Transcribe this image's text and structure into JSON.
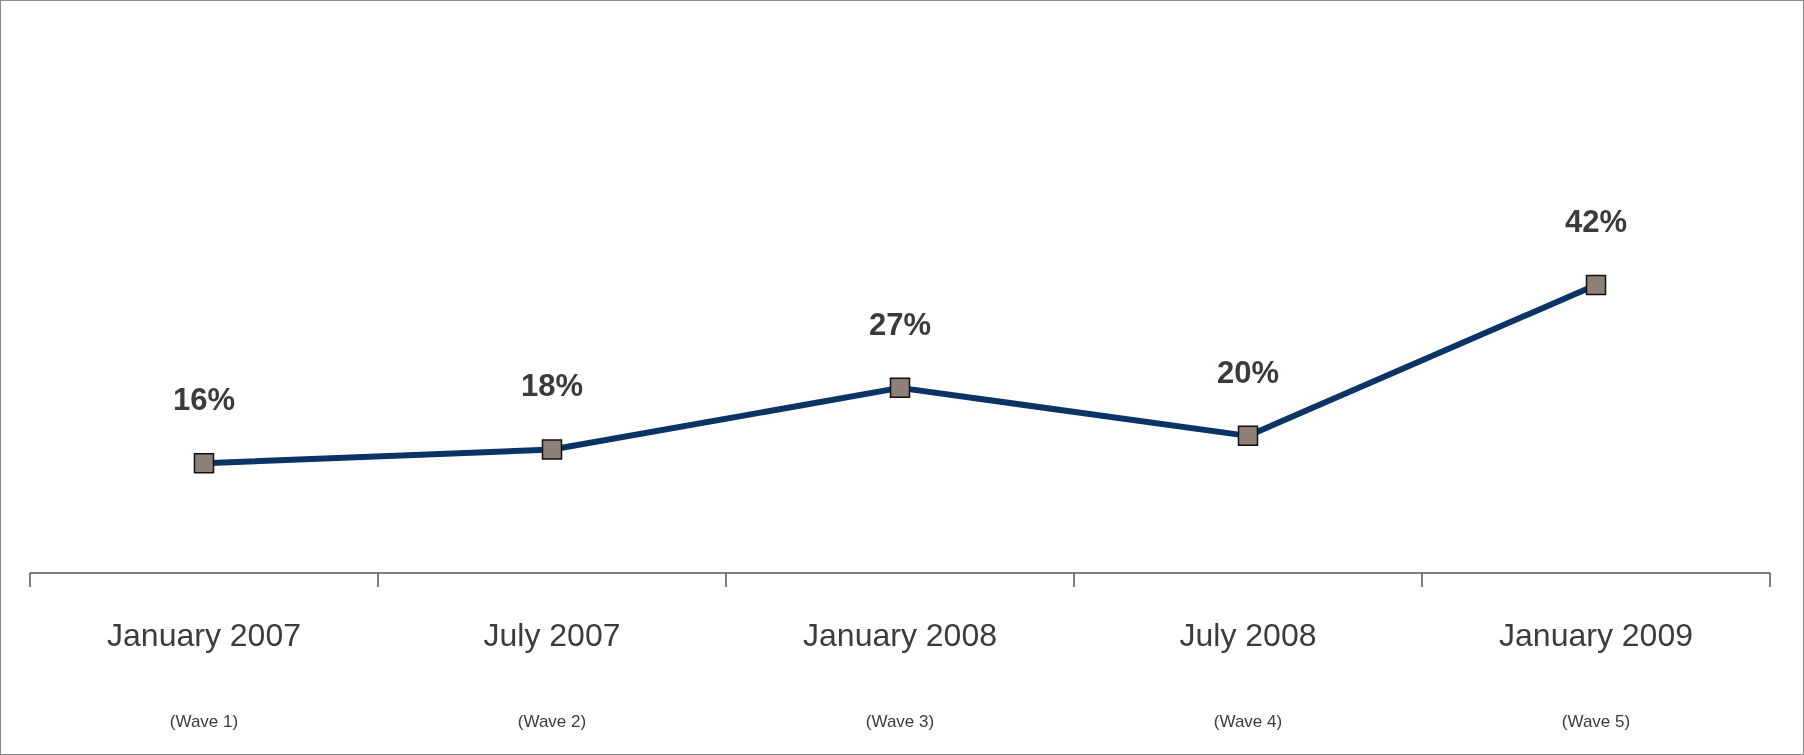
{
  "chart_data": {
    "type": "line",
    "categories": [
      "January 2007\n(Wave 1)",
      "July 2007\n(Wave 2)",
      "January 2008\n(Wave 3)",
      "July 2008\n(Wave 4)",
      "January 2009\n(Wave 5)"
    ],
    "series": [
      {
        "color": "#0b3466",
        "values": [
          16,
          18,
          27,
          20,
          42
        ],
        "value_labels": [
          "16%",
          "18%",
          "27%",
          "20%",
          "42%"
        ]
      }
    ],
    "marker": "square",
    "line_style": "solid"
  }
}
